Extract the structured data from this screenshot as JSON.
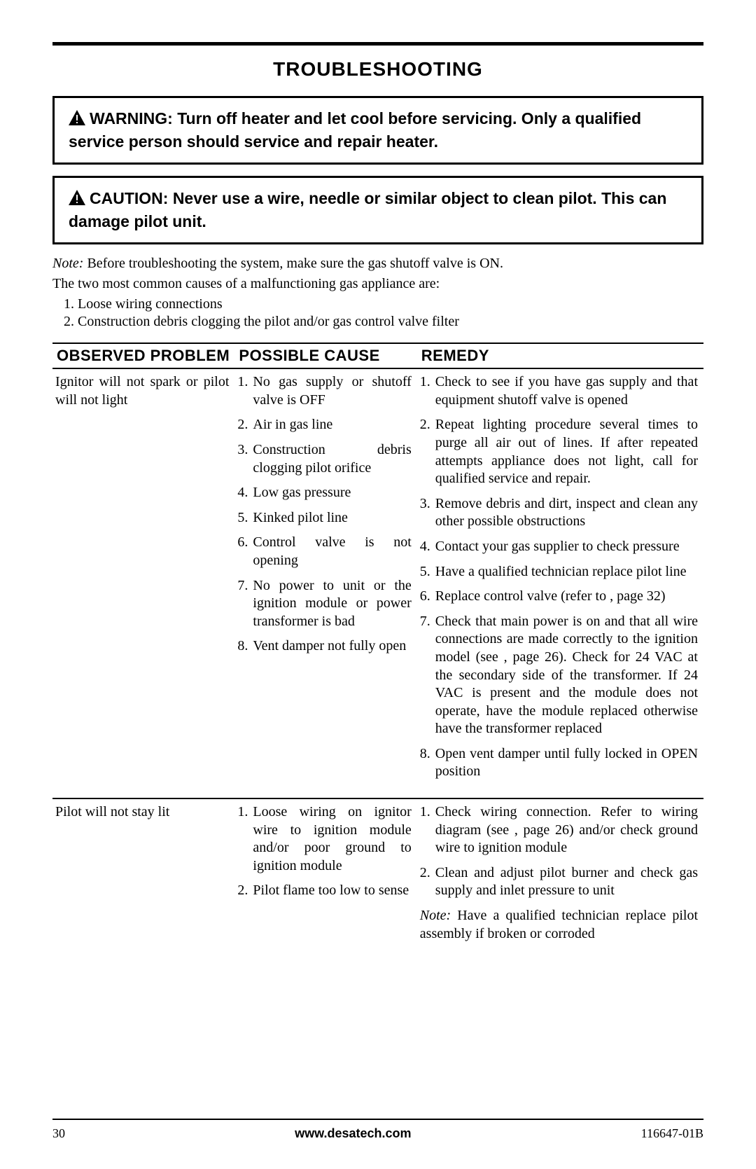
{
  "title": "TROUBLESHOOTING",
  "warning": "WARNING: Turn off heater and let cool before servicing. Only a qualified service person should service and repair heater.",
  "caution": "CAUTION: Never use a wire, needle or similar object to clean pilot. This can damage pilot unit.",
  "note_lead": "Note:",
  "note_body": " Before troubleshooting the system, make sure the gas shutoff valve is ON.",
  "intro": "The two most common causes of a malfunctioning gas appliance are:",
  "intro_items": [
    "Loose wiring connections",
    "Construction debris clogging the pilot and/or gas control valve filter"
  ],
  "headers": {
    "problem": "OBSERVED PROBLEM",
    "cause": "POSSIBLE CAUSE",
    "remedy": "REMEDY"
  },
  "rows": [
    {
      "problem": "Ignitor will not spark or pilot will not light",
      "causes": [
        "No gas supply or shutoff valve is OFF",
        "Air in gas line",
        "Construction debris clogging pilot orifice",
        "Low gas pressure",
        "Kinked pilot line",
        "Control valve is not opening",
        "No power to unit or the ignition module or power transformer is bad",
        "Vent damper not fully open"
      ],
      "remedies": [
        "Check to see if you have gas supply and that equipment shutoff valve is opened",
        "Repeat lighting procedure several times to purge all air out of lines. If after repeated attempts appliance does not light, call for qualified service and repair.",
        "Remove debris and dirt, inspect and clean any other possible obstructions",
        "Contact your gas supplier to check pressure",
        "Have a qualified technician replace pilot line",
        "Replace control valve (refer to , page 32)",
        "Check that main power is on and that all wire connections are made correctly to the ignition model (see , page 26). Check for 24 VAC at the secondary side of the transformer. If 24 VAC is present and the module does not operate, have the module replaced otherwise have the transformer replaced",
        "Open vent damper until fully locked in OPEN position"
      ],
      "remedy_note": ""
    },
    {
      "problem": "Pilot will not stay lit",
      "causes": [
        "Loose wiring on ignitor wire to ignition module and/or poor ground to ignition module",
        "Pilot flame too low to sense"
      ],
      "remedies": [
        "Check wiring connection. Refer to wiring diagram (see , page 26) and/or check ground wire to ignition module",
        "Clean and adjust pilot burner and check gas supply and inlet pressure to unit"
      ],
      "remedy_note": "Have a qualified technician replace pilot assembly if broken or corroded"
    }
  ],
  "footer": {
    "page": "30",
    "url": "www.desatech.com",
    "doc": "116647-01B"
  }
}
